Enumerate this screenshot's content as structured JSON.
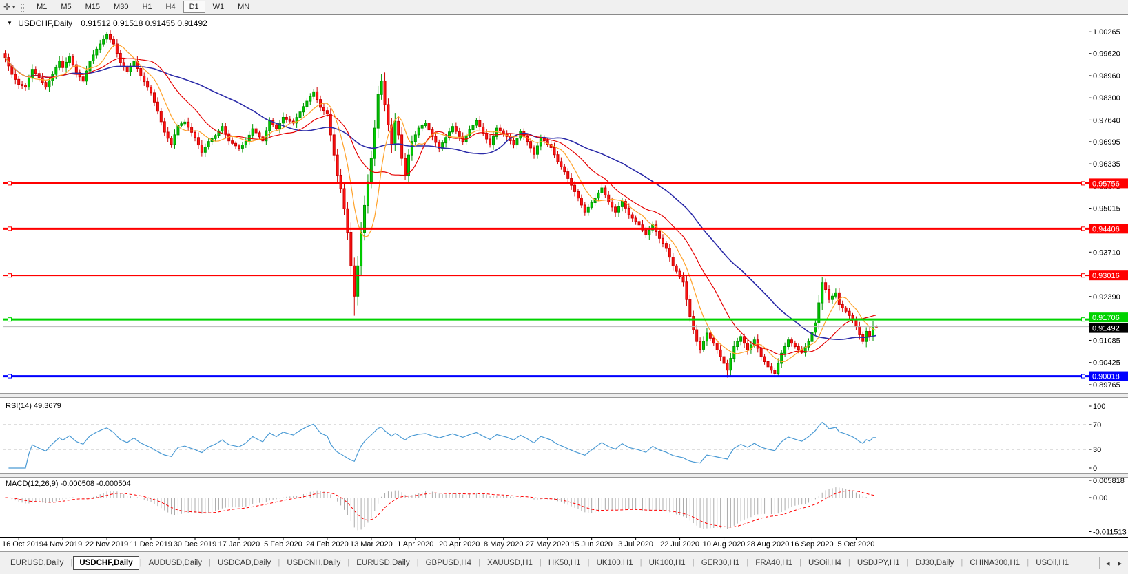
{
  "toolbar": {
    "cursor_icon": "✛",
    "dropdown_icon": "▾",
    "timeframes": [
      "M1",
      "M5",
      "M15",
      "M30",
      "H1",
      "H4",
      "D1",
      "W1",
      "MN"
    ],
    "active_timeframe": "D1"
  },
  "window": {
    "title_marker": "▼",
    "symbol_title": "USDCHF,Daily",
    "quote_line": "0.91512 0.91518 0.91455 0.91492"
  },
  "indicators": {
    "rsi_label": "RSI(14) 49.3679",
    "macd_label": "MACD(12,26,9) -0.000508 -0.000504"
  },
  "tabs": {
    "items": [
      "EURUSD,Daily",
      "USDCHF,Daily",
      "AUDUSD,Daily",
      "USDCAD,Daily",
      "USDCNH,Daily",
      "EURUSD,Daily",
      "GBPUSD,H4",
      "XAUUSD,H1",
      "HK50,H1",
      "UK100,H1",
      "UK100,H1",
      "GER30,H1",
      "FRA40,H1",
      "USOil,H4",
      "USDJPY,H1",
      "DJ30,Daily",
      "CHINA300,H1",
      "USOil,H1"
    ],
    "active_index": 1,
    "scroll_left_icon": "◂",
    "scroll_right_icon": "▸"
  },
  "colors": {
    "bull_fill": "#00cc00",
    "bull_stroke": "#009600",
    "bear_fill": "#ff1414",
    "bear_stroke": "#cc0000",
    "ma_fast": "#ffa128",
    "ma_mid": "#e60000",
    "ma_slow": "#2a2aa8",
    "rsi_line": "#4a9ad4",
    "macd_bar": "#ababab",
    "macd_signal": "#ff0000",
    "hline_red": "#ff0000",
    "hline_green": "#00d300",
    "hline_blue": "#0000ff",
    "current_price_line": "#b8b8b8",
    "current_tag_bg": "#000000",
    "grid_dash": "#bdbdbd",
    "axis_line": "#000000",
    "frame": "#8a8a8a"
  },
  "chart_data": {
    "type": "candlestick",
    "symbol": "USDCHF",
    "timeframe": "Daily",
    "ohlc_display": {
      "open": "0.91512",
      "high": "0.91518",
      "low": "0.91455",
      "close": "0.91492"
    },
    "y_axis_labels": [
      1.00265,
      0.9962,
      0.9896,
      0.983,
      0.9764,
      0.96995,
      0.96335,
      0.95675,
      0.95015,
      0.9371,
      0.9239,
      0.91085,
      0.90425,
      0.89765
    ],
    "x_labels": [
      "16 Oct 2019",
      "4 Nov 2019",
      "22 Nov 2019",
      "11 Dec 2019",
      "30 Dec 2019",
      "17 Jan 2020",
      "5 Feb 2020",
      "24 Feb 2020",
      "13 Mar 2020",
      "1 Apr 2020",
      "20 Apr 2020",
      "8 May 2020",
      "27 May 2020",
      "15 Jun 2020",
      "3 Jul 2020",
      "22 Jul 2020",
      "10 Aug 2020",
      "28 Aug 2020",
      "16 Sep 2020",
      "5 Oct 2020"
    ],
    "x_label_first_candle": 4,
    "x_label_step": 13,
    "candle_count": 258,
    "price_min": 0.8962,
    "price_max": 1.007,
    "close_anchors": [
      [
        0,
        0.995
      ],
      [
        2,
        0.99
      ],
      [
        4,
        0.987
      ],
      [
        6,
        0.9862
      ],
      [
        8,
        0.9915
      ],
      [
        10,
        0.989
      ],
      [
        12,
        0.9862
      ],
      [
        14,
        0.99
      ],
      [
        16,
        0.994
      ],
      [
        17,
        0.992
      ],
      [
        19,
        0.9952
      ],
      [
        21,
        0.9905
      ],
      [
        23,
        0.988
      ],
      [
        25,
        0.994
      ],
      [
        27,
        0.9975
      ],
      [
        29,
        1.0005
      ],
      [
        30,
        1.0018
      ],
      [
        32,
        0.999
      ],
      [
        34,
        0.9935
      ],
      [
        36,
        0.9908
      ],
      [
        38,
        0.994
      ],
      [
        40,
        0.9895
      ],
      [
        43,
        0.9845
      ],
      [
        45,
        0.979
      ],
      [
        47,
        0.9728
      ],
      [
        49,
        0.9692
      ],
      [
        51,
        0.9748
      ],
      [
        53,
        0.9758
      ],
      [
        56,
        0.9712
      ],
      [
        58,
        0.9668
      ],
      [
        60,
        0.97
      ],
      [
        62,
        0.9718
      ],
      [
        64,
        0.9745
      ],
      [
        66,
        0.9702
      ],
      [
        69,
        0.968
      ],
      [
        71,
        0.97
      ],
      [
        73,
        0.9738
      ],
      [
        76,
        0.9702
      ],
      [
        78,
        0.9762
      ],
      [
        80,
        0.9738
      ],
      [
        82,
        0.9772
      ],
      [
        85,
        0.9755
      ],
      [
        87,
        0.9788
      ],
      [
        89,
        0.982
      ],
      [
        91,
        0.9848
      ],
      [
        93,
        0.9802
      ],
      [
        95,
        0.9782
      ],
      [
        96,
        0.972
      ],
      [
        97,
        0.966
      ],
      [
        98,
        0.96
      ],
      [
        99,
        0.956
      ],
      [
        100,
        0.95
      ],
      [
        101,
        0.943
      ],
      [
        102,
        0.933
      ],
      [
        103,
        0.924
      ],
      [
        104,
        0.933
      ],
      [
        105,
        0.943
      ],
      [
        106,
        0.951
      ],
      [
        107,
        0.958
      ],
      [
        108,
        0.965
      ],
      [
        109,
        0.974
      ],
      [
        110,
        0.984
      ],
      [
        111,
        0.988
      ],
      [
        112,
        0.981
      ],
      [
        113,
        0.975
      ],
      [
        114,
        0.969
      ],
      [
        115,
        0.976
      ],
      [
        116,
        0.972
      ],
      [
        117,
        0.965
      ],
      [
        118,
        0.96
      ],
      [
        119,
        0.966
      ],
      [
        120,
        0.97
      ],
      [
        122,
        0.974
      ],
      [
        124,
        0.9755
      ],
      [
        126,
        0.9715
      ],
      [
        128,
        0.968
      ],
      [
        130,
        0.9712
      ],
      [
        132,
        0.9745
      ],
      [
        135,
        0.97
      ],
      [
        137,
        0.9735
      ],
      [
        139,
        0.9762
      ],
      [
        141,
        0.9725
      ],
      [
        143,
        0.969
      ],
      [
        145,
        0.974
      ],
      [
        148,
        0.9715
      ],
      [
        150,
        0.969
      ],
      [
        152,
        0.973
      ],
      [
        154,
        0.97
      ],
      [
        156,
        0.9662
      ],
      [
        158,
        0.9712
      ],
      [
        161,
        0.9682
      ],
      [
        163,
        0.964
      ],
      [
        165,
        0.961
      ],
      [
        167,
        0.957
      ],
      [
        169,
        0.9532
      ],
      [
        171,
        0.949
      ],
      [
        174,
        0.9532
      ],
      [
        176,
        0.9562
      ],
      [
        178,
        0.952
      ],
      [
        180,
        0.949
      ],
      [
        182,
        0.9522
      ],
      [
        184,
        0.9482
      ],
      [
        187,
        0.9452
      ],
      [
        189,
        0.9422
      ],
      [
        191,
        0.9452
      ],
      [
        193,
        0.9412
      ],
      [
        195,
        0.9382
      ],
      [
        197,
        0.933
      ],
      [
        200,
        0.9282
      ],
      [
        201,
        0.923
      ],
      [
        202,
        0.918
      ],
      [
        203,
        0.914
      ],
      [
        204,
        0.9105
      ],
      [
        205,
        0.9082
      ],
      [
        207,
        0.913
      ],
      [
        209,
        0.91
      ],
      [
        211,
        0.906
      ],
      [
        213,
        0.902
      ],
      [
        215,
        0.909
      ],
      [
        217,
        0.912
      ],
      [
        219,
        0.908
      ],
      [
        221,
        0.911
      ],
      [
        223,
        0.906
      ],
      [
        225,
        0.903
      ],
      [
        227,
        0.901
      ],
      [
        229,
        0.907
      ],
      [
        231,
        0.911
      ],
      [
        233,
        0.909
      ],
      [
        235,
        0.9072
      ],
      [
        237,
        0.9105
      ],
      [
        239,
        0.916
      ],
      [
        240,
        0.922
      ],
      [
        241,
        0.928
      ],
      [
        242,
        0.926
      ],
      [
        243,
        0.923
      ],
      [
        245,
        0.925
      ],
      [
        246,
        0.9215
      ],
      [
        248,
        0.9195
      ],
      [
        250,
        0.917
      ],
      [
        251,
        0.915
      ],
      [
        252,
        0.9125
      ],
      [
        253,
        0.9105
      ],
      [
        254,
        0.9135
      ],
      [
        255,
        0.912
      ],
      [
        256,
        0.915
      ],
      [
        257,
        0.91492
      ]
    ],
    "wick_overrides": [
      [
        30,
        "high",
        1.00265
      ],
      [
        103,
        "low",
        0.9182
      ],
      [
        111,
        "high",
        0.9901
      ],
      [
        213,
        "low",
        0.8998
      ],
      [
        241,
        "high",
        0.9296
      ]
    ],
    "moving_average_periods": [
      8,
      20,
      45
    ],
    "horizontal_lines": [
      {
        "price": 0.95756,
        "label": "0.95756",
        "color_key": "hline_red",
        "width": 3
      },
      {
        "price": 0.94406,
        "label": "0.94406",
        "color_key": "hline_red",
        "width": 3
      },
      {
        "price": 0.93016,
        "label": "0.93016",
        "color_key": "hline_red",
        "width": 2
      },
      {
        "price": 0.91706,
        "label": "0.91706",
        "color_key": "hline_green",
        "width": 3
      },
      {
        "price": 0.90018,
        "label": "0.90018",
        "color_key": "hline_blue",
        "width": 3
      }
    ],
    "current_price": {
      "value": 0.91492,
      "label": "0.91492"
    },
    "rsi": {
      "period": 14,
      "value": 49.3679,
      "scale_labels": [
        100,
        70,
        30,
        0
      ],
      "level_lines": [
        70,
        30
      ]
    },
    "macd": {
      "fast": 12,
      "slow": 26,
      "signal": 9,
      "values_text": "-0.000508 -0.000504",
      "scale_labels": [
        "0.005818",
        "0.00",
        "-0.011513"
      ],
      "scale_values": [
        0.005818,
        0,
        -0.011513
      ]
    }
  }
}
